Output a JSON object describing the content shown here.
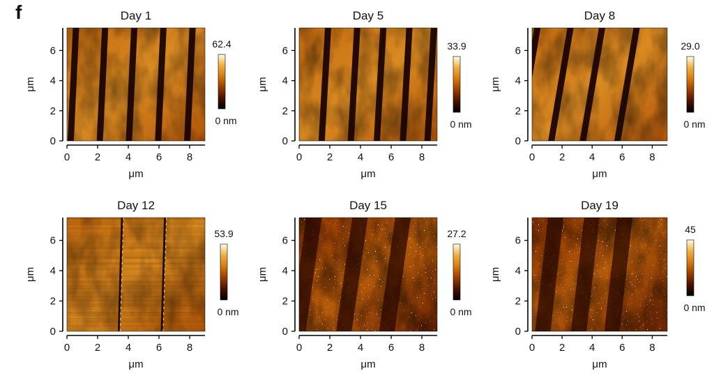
{
  "figure": {
    "panel_label": "f",
    "colormap": [
      "#000000",
      "#4a1200",
      "#9a3f00",
      "#d47a10",
      "#f0b040",
      "#fffde8"
    ],
    "panels": [
      {
        "title": "Day 1",
        "x_ticks": [
          "0",
          "2",
          "4",
          "6",
          "8"
        ],
        "y_ticks": [
          "0",
          "2",
          "4",
          "6"
        ],
        "x_label": "μm",
        "y_label": "μm",
        "colorbar_max": "62.4",
        "colorbar_min": "0 nm",
        "stripe_x_um": [
          0.6,
          2.5,
          4.4,
          6.3,
          8.2
        ],
        "stripe_tilt": 0.05
      },
      {
        "title": "Day 5",
        "x_ticks": [
          "0",
          "2",
          "4",
          "6",
          "8"
        ],
        "y_ticks": [
          "0",
          "2",
          "4",
          "6"
        ],
        "x_label": "μm",
        "y_label": "μm",
        "colorbar_max": "33.9",
        "colorbar_min": "0 nm",
        "stripe_x_um": [
          1.9,
          3.8,
          5.5,
          7.2,
          8.8
        ],
        "stripe_tilt": 0.06
      },
      {
        "title": "Day 8",
        "x_ticks": [
          "0",
          "2",
          "4",
          "6",
          "8"
        ],
        "y_ticks": [
          "0",
          "2",
          "4",
          "6"
        ],
        "x_label": "μm",
        "y_label": "μm",
        "colorbar_max": "29.0",
        "colorbar_min": "0 nm",
        "stripe_x_um": [
          0.4,
          2.6,
          4.7,
          7.0
        ],
        "stripe_tilt": 0.18
      },
      {
        "title": "Day 12",
        "x_ticks": [
          "0",
          "2",
          "4",
          "6",
          "8"
        ],
        "y_ticks": [
          "0",
          "2",
          "4",
          "6"
        ],
        "x_label": "μm",
        "y_label": "μm",
        "colorbar_max": "53.9",
        "colorbar_min": "0 nm",
        "stripe_x_um": [
          3.6,
          6.4
        ],
        "stripe_tilt": 0.03
      },
      {
        "title": "Day 15",
        "x_ticks": [
          "0",
          "2",
          "4",
          "6",
          "8"
        ],
        "y_ticks": [
          "0",
          "2",
          "4",
          "6"
        ],
        "x_label": "μm",
        "y_label": "μm",
        "colorbar_max": "27.2",
        "colorbar_min": "0 nm",
        "stripe_x_um": [
          1.0,
          4.0,
          6.8
        ],
        "stripe_tilt": 0.15
      },
      {
        "title": "Day 19",
        "x_ticks": [
          "0",
          "2",
          "4",
          "6",
          "8"
        ],
        "y_ticks": [
          "0",
          "2",
          "4",
          "6"
        ],
        "x_label": "μm",
        "y_label": "μm",
        "colorbar_max": "45",
        "colorbar_min": "0 nm",
        "stripe_x_um": [
          1.6,
          4.0,
          6.2
        ],
        "stripe_tilt": 0.12
      }
    ]
  }
}
